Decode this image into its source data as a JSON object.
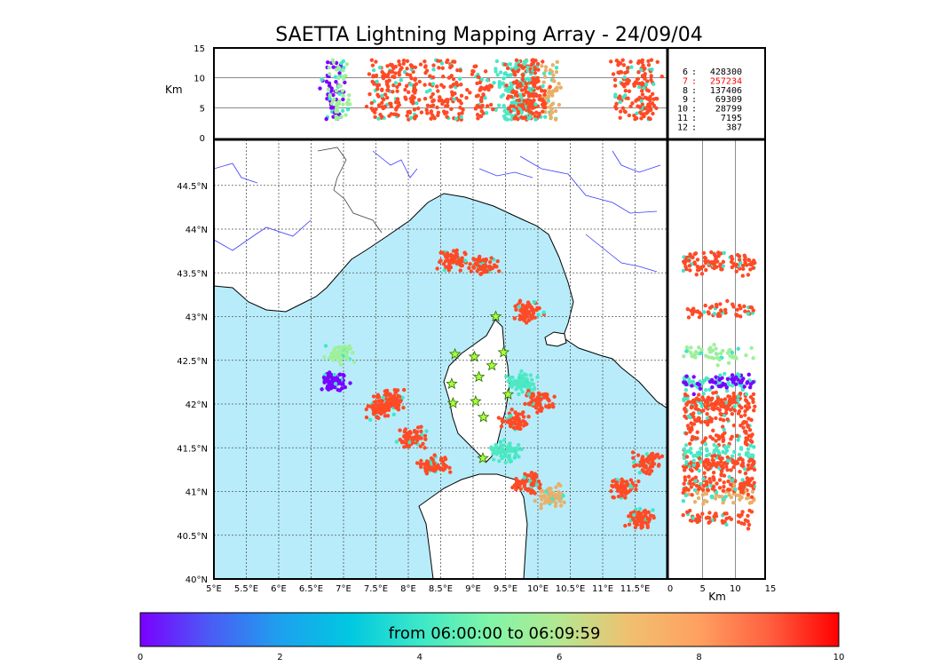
{
  "chart_data": {
    "type": "scatter",
    "title": "SAETTA Lightning Mapping Array - 24/09/04",
    "map": {
      "x_ticks": [
        "5°E",
        "5.5°E",
        "6°E",
        "6.5°E",
        "7°E",
        "7.5°E",
        "8°E",
        "8.5°E",
        "9°E",
        "9.5°E",
        "10°E",
        "10.5°E",
        "11°E",
        "11.5°E"
      ],
      "y_ticks": [
        "40°N",
        "40.5°N",
        "41°N",
        "41.5°N",
        "42°N",
        "42.5°N",
        "43°N",
        "43.5°N",
        "44°N",
        "44.5°N"
      ],
      "lon_range": [
        5,
        12
      ],
      "lat_range": [
        40,
        45
      ],
      "stations": [
        [
          9.35,
          43.0
        ],
        [
          8.72,
          42.57
        ],
        [
          9.02,
          42.54
        ],
        [
          9.47,
          42.59
        ],
        [
          9.29,
          42.44
        ],
        [
          9.09,
          42.31
        ],
        [
          8.67,
          42.23
        ],
        [
          9.54,
          42.11
        ],
        [
          8.69,
          42.01
        ],
        [
          9.04,
          42.03
        ],
        [
          9.16,
          41.85
        ],
        [
          9.15,
          41.38
        ]
      ],
      "storm_cells": [
        {
          "lon": 7.75,
          "lat": 42.05,
          "color": "#ff4a26"
        },
        {
          "lon": 7.55,
          "lat": 41.95,
          "color": "#ff4a26"
        },
        {
          "lon": 8.05,
          "lat": 41.6,
          "color": "#ff4a26"
        },
        {
          "lon": 8.4,
          "lat": 41.3,
          "color": "#ff4a26"
        },
        {
          "lon": 9.85,
          "lat": 41.1,
          "color": "#ff4a26"
        },
        {
          "lon": 10.2,
          "lat": 40.95,
          "color": "#e8b06a"
        },
        {
          "lon": 11.3,
          "lat": 41.05,
          "color": "#ff4a26"
        },
        {
          "lon": 11.6,
          "lat": 40.7,
          "color": "#ff4a26"
        },
        {
          "lon": 9.75,
          "lat": 42.25,
          "color": "#4fe8c4"
        },
        {
          "lon": 9.5,
          "lat": 41.45,
          "color": "#4fe8c4"
        },
        {
          "lon": 9.65,
          "lat": 41.8,
          "color": "#ff4a26"
        },
        {
          "lon": 9.15,
          "lat": 43.58,
          "color": "#ff4a26"
        },
        {
          "lon": 8.7,
          "lat": 43.65,
          "color": "#ff4a26"
        },
        {
          "lon": 9.85,
          "lat": 43.06,
          "color": "#ff4a26"
        },
        {
          "lon": 11.7,
          "lat": 41.33,
          "color": "#ff4a26"
        },
        {
          "lon": 10.0,
          "lat": 42.02,
          "color": "#ff4a26"
        },
        {
          "lon": 6.85,
          "lat": 42.25,
          "color": "#7a00ff"
        },
        {
          "lon": 6.95,
          "lat": 42.58,
          "color": "#9ff09a"
        }
      ]
    },
    "top_panel": {
      "ylabel": "Km",
      "y_ticks": [
        "0",
        "5",
        "10",
        "15"
      ],
      "y_range": [
        0,
        15
      ]
    },
    "right_panel": {
      "xlabel": "Km",
      "x_ticks": [
        "0",
        "5",
        "10",
        "15"
      ],
      "x_range": [
        0,
        15
      ]
    },
    "stats": [
      {
        "label": "6",
        "value": "428300",
        "color": "#000000"
      },
      {
        "label": "7",
        "value": "257234",
        "color": "#ff0000"
      },
      {
        "label": "8",
        "value": "137406",
        "color": "#000000"
      },
      {
        "label": "9",
        "value": "69309",
        "color": "#000000"
      },
      {
        "label": "10",
        "value": "28799",
        "color": "#000000"
      },
      {
        "label": "11",
        "value": "7195",
        "color": "#000000"
      },
      {
        "label": "12",
        "value": "387",
        "color": "#000000"
      }
    ],
    "colorbar": {
      "label": "from 06:00:00 to 06:09:59",
      "ticks": [
        "0",
        "2",
        "4",
        "6",
        "8",
        "10"
      ],
      "range": [
        0,
        10
      ],
      "colors": [
        "#7a00ff",
        "#4a5cf5",
        "#1ea0ee",
        "#00c8e0",
        "#3ce8c8",
        "#80f5a8",
        "#b4e890",
        "#f0c070",
        "#ffa060",
        "#ff6040",
        "#ff0000"
      ]
    }
  }
}
